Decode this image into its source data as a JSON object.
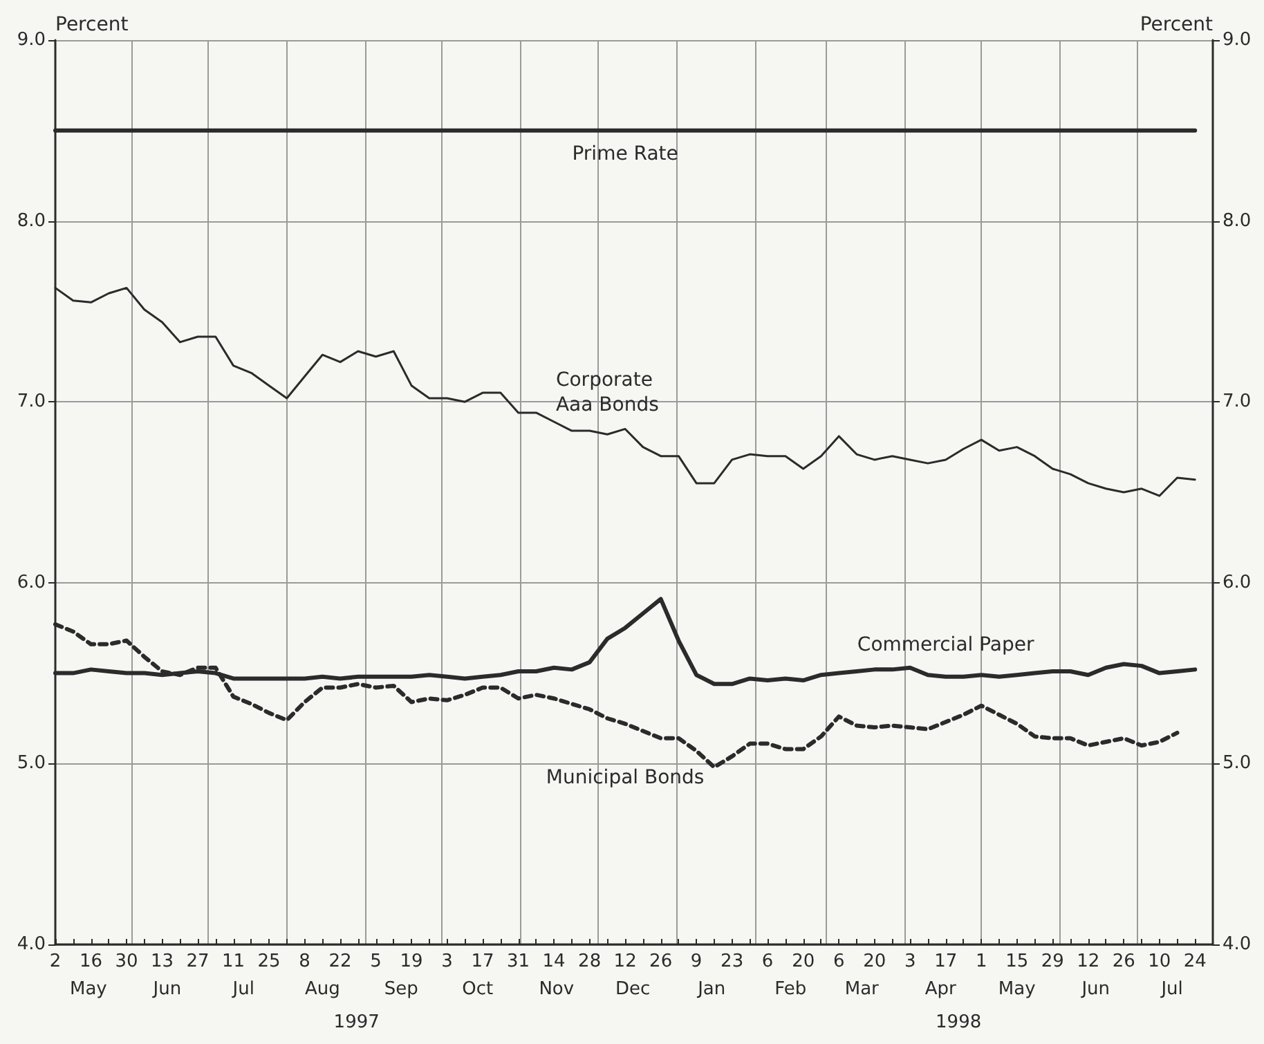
{
  "chart_data": {
    "type": "line",
    "ylabel": "Percent",
    "y2label": "Percent",
    "grid": true,
    "legend": false,
    "marker": "none",
    "x": [
      "1997-05-02",
      "1997-05-09",
      "1997-05-16",
      "1997-05-23",
      "1997-05-30",
      "1997-06-06",
      "1997-06-13",
      "1997-06-20",
      "1997-06-27",
      "1997-07-04",
      "1997-07-11",
      "1997-07-18",
      "1997-07-25",
      "1997-08-01",
      "1997-08-08",
      "1997-08-15",
      "1997-08-22",
      "1997-08-29",
      "1997-09-05",
      "1997-09-12",
      "1997-09-19",
      "1997-09-26",
      "1997-10-03",
      "1997-10-10",
      "1997-10-17",
      "1997-10-24",
      "1997-10-31",
      "1997-11-07",
      "1997-11-14",
      "1997-11-21",
      "1997-11-28",
      "1997-12-05",
      "1997-12-12",
      "1997-12-19",
      "1997-12-26",
      "1998-01-02",
      "1998-01-09",
      "1998-01-16",
      "1998-01-23",
      "1998-01-30",
      "1998-02-06",
      "1998-02-13",
      "1998-02-20",
      "1998-02-27",
      "1998-03-06",
      "1998-03-13",
      "1998-03-20",
      "1998-03-27",
      "1998-04-03",
      "1998-04-10",
      "1998-04-17",
      "1998-04-24",
      "1998-05-01",
      "1998-05-08",
      "1998-05-15",
      "1998-05-22",
      "1998-05-29",
      "1998-06-05",
      "1998-06-12",
      "1998-06-19",
      "1998-06-26",
      "1998-07-03",
      "1998-07-10",
      "1998-07-17",
      "1998-07-24"
    ],
    "series": [
      {
        "name": "Prime Rate",
        "color": "#2b2b2b",
        "values": [
          8.5,
          8.5,
          8.5,
          8.5,
          8.5,
          8.5,
          8.5,
          8.5,
          8.5,
          8.5,
          8.5,
          8.5,
          8.5,
          8.5,
          8.5,
          8.5,
          8.5,
          8.5,
          8.5,
          8.5,
          8.5,
          8.5,
          8.5,
          8.5,
          8.5,
          8.5,
          8.5,
          8.5,
          8.5,
          8.5,
          8.5,
          8.5,
          8.5,
          8.5,
          8.5,
          8.5,
          8.5,
          8.5,
          8.5,
          8.5,
          8.5,
          8.5,
          8.5,
          8.5,
          8.5,
          8.5,
          8.5,
          8.5,
          8.5,
          8.5,
          8.5,
          8.5,
          8.5,
          8.5,
          8.5,
          8.5,
          8.5,
          8.5,
          8.5,
          8.5,
          8.5,
          8.5,
          8.5,
          8.5,
          8.5
        ]
      },
      {
        "name": "Corporate Aaa Bonds",
        "color": "#2b2b2b",
        "values": [
          7.63,
          7.56,
          7.55,
          7.6,
          7.63,
          7.51,
          7.44,
          7.33,
          7.36,
          7.36,
          7.2,
          7.16,
          7.09,
          7.02,
          7.14,
          7.26,
          7.22,
          7.28,
          7.25,
          7.28,
          7.09,
          7.02,
          7.02,
          7.0,
          7.05,
          7.05,
          6.94,
          6.94,
          6.89,
          6.84,
          6.84,
          6.82,
          6.85,
          6.75,
          6.7,
          6.7,
          6.55,
          6.55,
          6.68,
          6.71,
          6.7,
          6.7,
          6.63,
          6.7,
          6.81,
          6.71,
          6.68,
          6.7,
          6.68,
          6.66,
          6.68,
          6.74,
          6.79,
          6.73,
          6.75,
          6.7,
          6.63,
          6.6,
          6.55,
          6.52,
          6.5,
          6.52,
          6.48,
          6.58,
          6.57
        ]
      },
      {
        "name": "Commercial Paper",
        "color": "#2b2b2b",
        "values": [
          5.5,
          5.5,
          5.52,
          5.51,
          5.5,
          5.5,
          5.49,
          5.5,
          5.51,
          5.5,
          5.47,
          5.47,
          5.47,
          5.47,
          5.47,
          5.48,
          5.47,
          5.48,
          5.48,
          5.48,
          5.48,
          5.49,
          5.48,
          5.47,
          5.48,
          5.49,
          5.51,
          5.51,
          5.53,
          5.52,
          5.56,
          5.69,
          5.75,
          5.83,
          5.91,
          5.68,
          5.49,
          5.44,
          5.44,
          5.47,
          5.46,
          5.47,
          5.46,
          5.49,
          5.5,
          5.51,
          5.52,
          5.52,
          5.53,
          5.49,
          5.48,
          5.48,
          5.49,
          5.48,
          5.49,
          5.5,
          5.51,
          5.51,
          5.49,
          5.53,
          5.55,
          5.54,
          5.5,
          5.51,
          5.52
        ]
      },
      {
        "name": "Municipal Bonds",
        "color": "#2b2b2b",
        "line_style": "dashed",
        "values": [
          5.77,
          5.73,
          5.66,
          5.66,
          5.68,
          5.59,
          5.51,
          5.49,
          5.53,
          5.53,
          5.37,
          5.33,
          5.28,
          5.24,
          5.34,
          5.42,
          5.42,
          5.44,
          5.42,
          5.43,
          5.34,
          5.36,
          5.35,
          5.38,
          5.42,
          5.42,
          5.36,
          5.38,
          5.36,
          5.33,
          5.3,
          5.25,
          5.22,
          5.18,
          5.14,
          5.14,
          5.07,
          4.98,
          5.04,
          5.11,
          5.11,
          5.08,
          5.08,
          5.15,
          5.26,
          5.21,
          5.2,
          5.21,
          5.2,
          5.19,
          5.23,
          5.27,
          5.32,
          5.27,
          5.22,
          5.15,
          5.14,
          5.14,
          5.1,
          5.12,
          5.14,
          5.1,
          5.12,
          5.17,
          null
        ]
      }
    ],
    "xlim": [
      "1997-05-02",
      "1998-07-31"
    ],
    "xticks": [
      {
        "value": "1997-05-02",
        "label": "2"
      },
      {
        "value": "1997-05-09",
        "label": null
      },
      {
        "value": "1997-05-16",
        "label": "16"
      },
      {
        "value": "1997-05-23",
        "label": null
      },
      {
        "value": "1997-05-30",
        "label": "30"
      },
      {
        "value": "1997-06-06",
        "label": null
      },
      {
        "value": "1997-06-13",
        "label": "13"
      },
      {
        "value": "1997-06-20",
        "label": null
      },
      {
        "value": "1997-06-27",
        "label": "27"
      },
      {
        "value": "1997-07-04",
        "label": null
      },
      {
        "value": "1997-07-11",
        "label": "11"
      },
      {
        "value": "1997-07-18",
        "label": null
      },
      {
        "value": "1997-07-25",
        "label": "25"
      },
      {
        "value": "1997-08-01",
        "label": null
      },
      {
        "value": "1997-08-08",
        "label": "8"
      },
      {
        "value": "1997-08-15",
        "label": null
      },
      {
        "value": "1997-08-22",
        "label": "22"
      },
      {
        "value": "1997-08-29",
        "label": null
      },
      {
        "value": "1997-09-05",
        "label": "5"
      },
      {
        "value": "1997-09-12",
        "label": null
      },
      {
        "value": "1997-09-19",
        "label": "19"
      },
      {
        "value": "1997-09-26",
        "label": null
      },
      {
        "value": "1997-10-03",
        "label": "3"
      },
      {
        "value": "1997-10-10",
        "label": null
      },
      {
        "value": "1997-10-17",
        "label": "17"
      },
      {
        "value": "1997-10-24",
        "label": null
      },
      {
        "value": "1997-10-31",
        "label": "31"
      },
      {
        "value": "1997-11-07",
        "label": null
      },
      {
        "value": "1997-11-14",
        "label": "14"
      },
      {
        "value": "1997-11-21",
        "label": null
      },
      {
        "value": "1997-11-28",
        "label": "28"
      },
      {
        "value": "1997-12-05",
        "label": null
      },
      {
        "value": "1997-12-12",
        "label": "12"
      },
      {
        "value": "1997-12-19",
        "label": null
      },
      {
        "value": "1997-12-26",
        "label": "26"
      },
      {
        "value": "1998-01-02",
        "label": null
      },
      {
        "value": "1998-01-09",
        "label": "9"
      },
      {
        "value": "1998-01-16",
        "label": null
      },
      {
        "value": "1998-01-23",
        "label": "23"
      },
      {
        "value": "1998-01-30",
        "label": null
      },
      {
        "value": "1998-02-06",
        "label": "6"
      },
      {
        "value": "1998-02-13",
        "label": null
      },
      {
        "value": "1998-02-20",
        "label": "20"
      },
      {
        "value": "1998-02-27",
        "label": null
      },
      {
        "value": "1998-03-06",
        "label": "6"
      },
      {
        "value": "1998-03-13",
        "label": null
      },
      {
        "value": "1998-03-20",
        "label": "20"
      },
      {
        "value": "1998-03-27",
        "label": null
      },
      {
        "value": "1998-04-03",
        "label": "3"
      },
      {
        "value": "1998-04-10",
        "label": null
      },
      {
        "value": "1998-04-17",
        "label": "17"
      },
      {
        "value": "1998-04-24",
        "label": null
      },
      {
        "value": "1998-05-01",
        "label": "1"
      },
      {
        "value": "1998-05-08",
        "label": null
      },
      {
        "value": "1998-05-15",
        "label": "15"
      },
      {
        "value": "1998-05-22",
        "label": null
      },
      {
        "value": "1998-05-29",
        "label": "29"
      },
      {
        "value": "1998-06-05",
        "label": null
      },
      {
        "value": "1998-06-12",
        "label": "12"
      },
      {
        "value": "1998-06-19",
        "label": null
      },
      {
        "value": "1998-06-26",
        "label": "26"
      },
      {
        "value": "1998-07-03",
        "label": null
      },
      {
        "value": "1998-07-10",
        "label": "10"
      },
      {
        "value": "1998-07-17",
        "label": null
      },
      {
        "value": "1998-07-24",
        "label": "24"
      }
    ],
    "x2lim": [
      "1997-05-02",
      "1998-07-31"
    ],
    "x2ticks": [
      {
        "value": "1997-05-15",
        "label": "May"
      },
      {
        "value": "1997-06-01",
        "label": null
      },
      {
        "value": "1997-06-15",
        "label": "Jun"
      },
      {
        "value": "1997-07-01",
        "label": null
      },
      {
        "value": "1997-07-15",
        "label": "Jul"
      },
      {
        "value": "1997-08-01",
        "label": null
      },
      {
        "value": "1997-08-15",
        "label": "Aug"
      },
      {
        "value": "1997-09-01",
        "label": null
      },
      {
        "value": "1997-09-15",
        "label": "Sep"
      },
      {
        "value": "1997-10-01",
        "label": null
      },
      {
        "value": "1997-10-15",
        "label": "Oct"
      },
      {
        "value": "1997-11-01",
        "label": null
      },
      {
        "value": "1997-11-15",
        "label": "Nov"
      },
      {
        "value": "1997-12-01",
        "label": null
      },
      {
        "value": "1997-12-15",
        "label": "Dec"
      },
      {
        "value": "1998-01-01",
        "label": null
      },
      {
        "value": "1998-01-15",
        "label": "Jan"
      },
      {
        "value": "1998-02-01",
        "label": null
      },
      {
        "value": "1998-02-15",
        "label": "Feb"
      },
      {
        "value": "1998-03-01",
        "label": null
      },
      {
        "value": "1998-03-15",
        "label": "Mar"
      },
      {
        "value": "1998-04-01",
        "label": null
      },
      {
        "value": "1998-04-15",
        "label": "Apr"
      },
      {
        "value": "1998-05-01",
        "label": null
      },
      {
        "value": "1998-05-15",
        "label": "May"
      },
      {
        "value": "1998-06-01",
        "label": null
      },
      {
        "value": "1998-06-15",
        "label": "Jun"
      },
      {
        "value": "1998-07-01",
        "label": null
      },
      {
        "value": "1998-07-15",
        "label": "Jul"
      }
    ],
    "annotations": [
      "1997",
      "1998"
    ],
    "ylim": [
      4,
      9
    ],
    "yticks": [
      {
        "value": 4,
        "label": "4.0"
      },
      {
        "value": 5,
        "label": "5.0"
      },
      {
        "value": 6,
        "label": "6.0"
      },
      {
        "value": 7,
        "label": "7.0"
      },
      {
        "value": 8,
        "label": "8.0"
      },
      {
        "value": 9,
        "label": "9.0"
      }
    ],
    "y2lim": [
      4,
      9
    ],
    "y2ticks": [
      {
        "value": 4,
        "label": "4.0"
      },
      {
        "value": 5,
        "label": "5.0"
      },
      {
        "value": 6,
        "label": "6.0"
      },
      {
        "value": 7,
        "label": "7.0"
      },
      {
        "value": 8,
        "label": "8.0"
      },
      {
        "value": 9,
        "label": "9.0"
      }
    ]
  }
}
